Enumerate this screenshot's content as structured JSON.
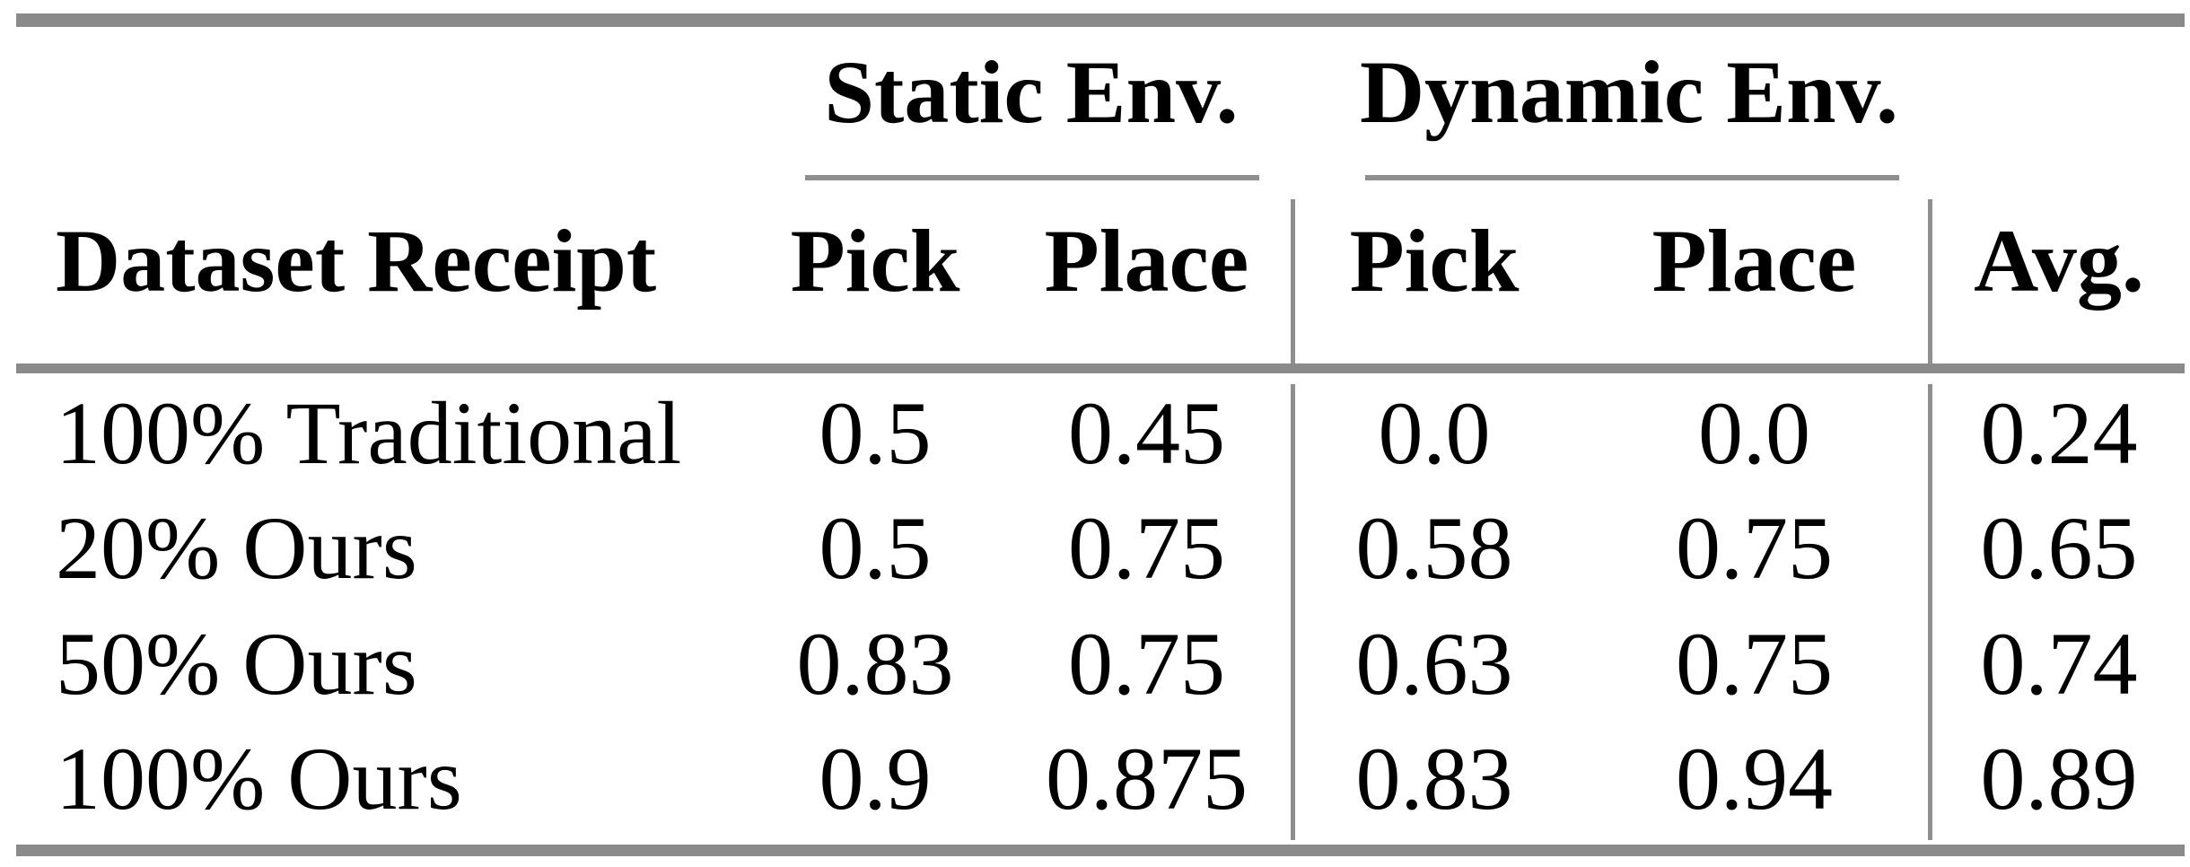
{
  "table": {
    "column_groups": {
      "static": "Static Env.",
      "dynamic": "Dynamic Env."
    },
    "headers": {
      "label": "Dataset Receipt",
      "static_pick": "Pick",
      "static_place": "Place",
      "dynamic_pick": "Pick",
      "dynamic_place": "Place",
      "avg": "Avg."
    },
    "rows": [
      {
        "label": "100% Traditional",
        "values": [
          "0.5",
          "0.45",
          "0.0",
          "0.0",
          "0.24"
        ]
      },
      {
        "label": "20% Ours",
        "values": [
          "0.5",
          "0.75",
          "0.58",
          "0.75",
          "0.65"
        ]
      },
      {
        "label": "50% Ours",
        "values": [
          "0.83",
          "0.75",
          "0.63",
          "0.75",
          "0.74"
        ]
      },
      {
        "label": "100% Ours",
        "values": [
          "0.9",
          "0.875",
          "0.83",
          "0.94",
          "0.89"
        ]
      }
    ]
  },
  "chart_data": {
    "type": "table",
    "title": "",
    "column_groups": [
      "",
      "Static Env.",
      "Static Env.",
      "Dynamic Env.",
      "Dynamic Env.",
      ""
    ],
    "columns": [
      "Dataset Receipt",
      "Pick",
      "Place",
      "Pick",
      "Place",
      "Avg."
    ],
    "rows": [
      [
        "100% Traditional",
        0.5,
        0.45,
        0.0,
        0.0,
        0.24
      ],
      [
        "20% Ours",
        0.5,
        0.75,
        0.58,
        0.75,
        0.65
      ],
      [
        "50% Ours",
        0.83,
        0.75,
        0.63,
        0.75,
        0.74
      ],
      [
        "100% Ours",
        0.9,
        0.875,
        0.83,
        0.94,
        0.89
      ]
    ]
  },
  "colors": {
    "text": "#000000",
    "rule": "#8a8a8a",
    "background": "#ffffff"
  }
}
